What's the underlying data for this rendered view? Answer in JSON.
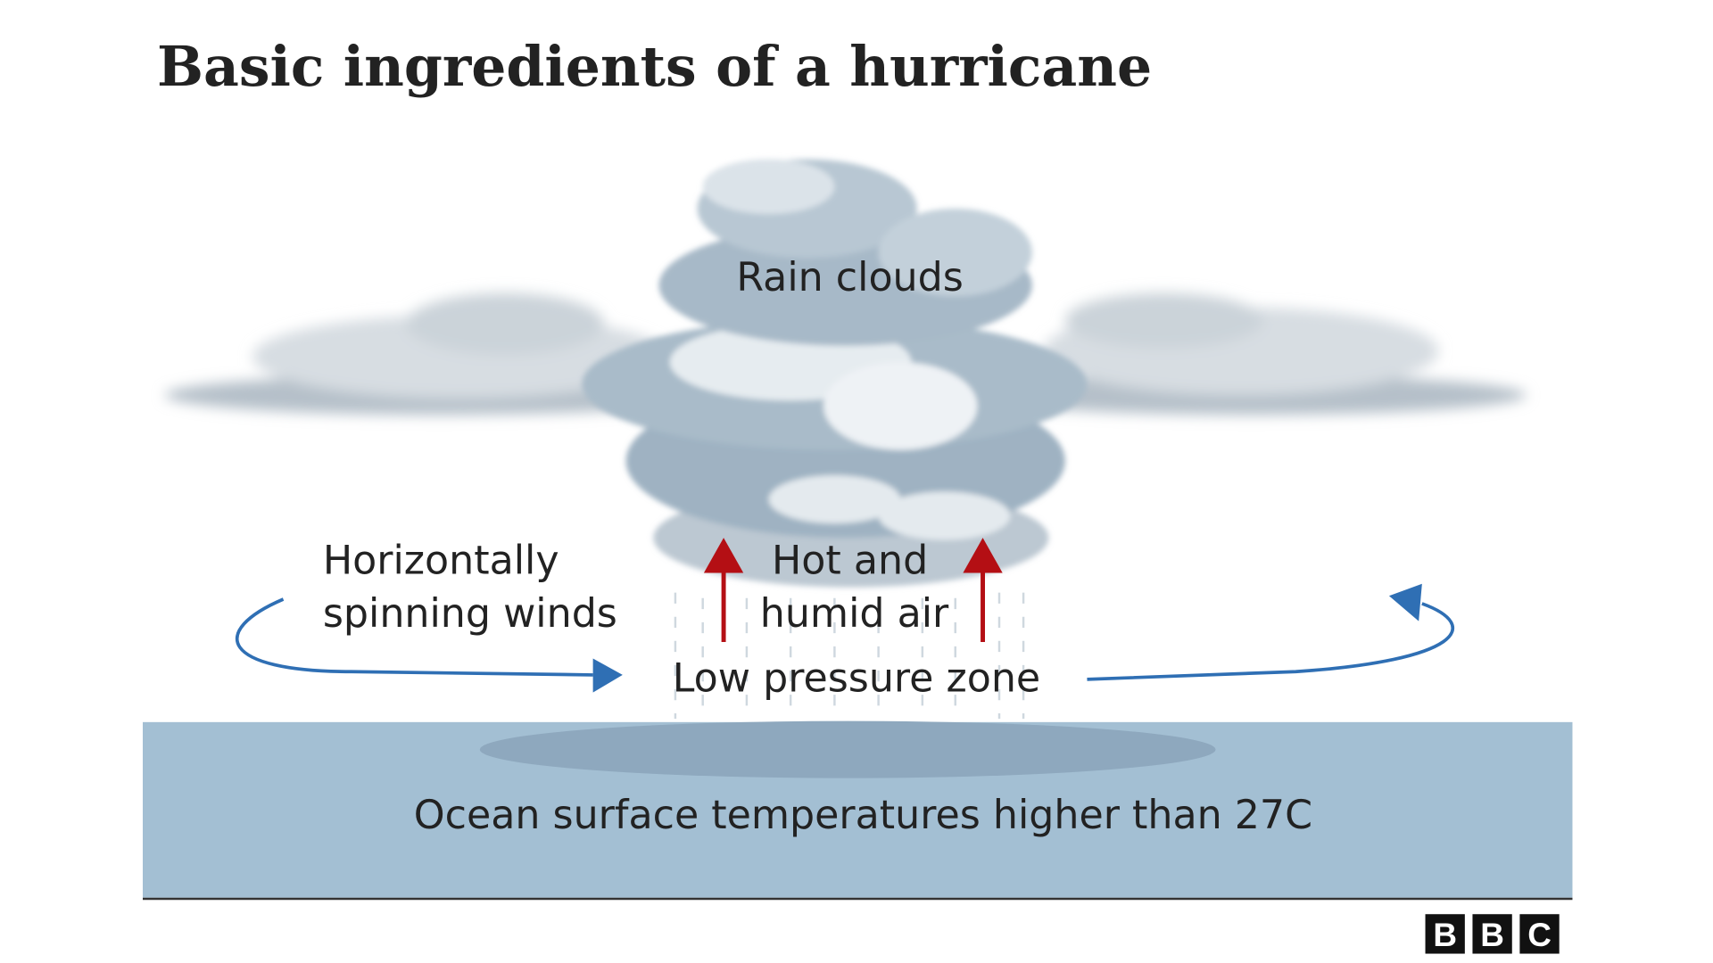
{
  "header": {
    "title": "Basic ingredients of a hurricane"
  },
  "labels": {
    "rain_clouds": "Rain clouds",
    "winds": [
      "Horizontally",
      "spinning winds"
    ],
    "air": [
      "Hot and",
      "humid air"
    ],
    "low_pressure": "Low pressure zone",
    "ocean": "Ocean surface temperatures higher than 27C"
  },
  "logo": [
    "B",
    "B",
    "C"
  ]
}
